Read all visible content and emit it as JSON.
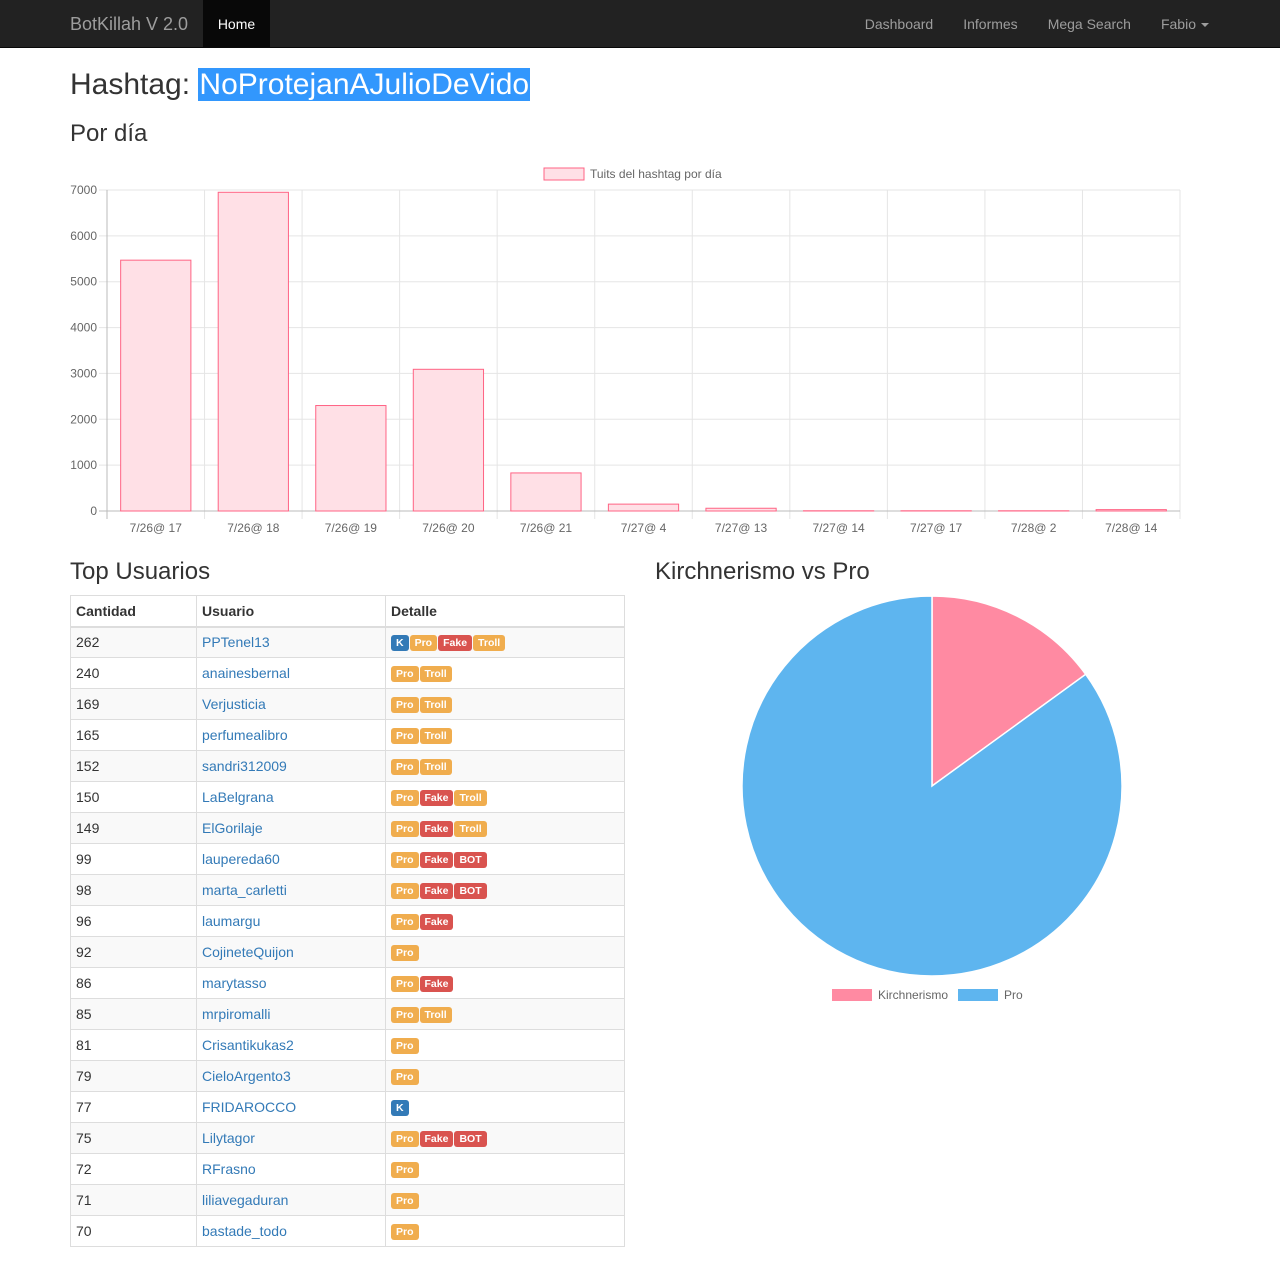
{
  "navbar": {
    "brand": "BotKillah V 2.0",
    "home": "Home",
    "links": [
      "Dashboard",
      "Informes",
      "Mega Search"
    ],
    "user": "Fabio"
  },
  "header": {
    "prefix": "Hashtag: ",
    "hashtag": "NoProtejanAJulioDeVido"
  },
  "sections": {
    "per_day": "Por día",
    "top_users": "Top Usuarios",
    "pie": "Kirchnerismo vs Pro"
  },
  "table": {
    "headers": [
      "Cantidad",
      "Usuario",
      "Detalle"
    ],
    "rows": [
      {
        "count": "262",
        "user": "PPTenel13",
        "tags": [
          "K",
          "Pro",
          "Fake",
          "Troll"
        ]
      },
      {
        "count": "240",
        "user": "anainesbernal",
        "tags": [
          "Pro",
          "Troll"
        ]
      },
      {
        "count": "169",
        "user": "Verjusticia",
        "tags": [
          "Pro",
          "Troll"
        ]
      },
      {
        "count": "165",
        "user": "perfumealibro",
        "tags": [
          "Pro",
          "Troll"
        ]
      },
      {
        "count": "152",
        "user": "sandri312009",
        "tags": [
          "Pro",
          "Troll"
        ]
      },
      {
        "count": "150",
        "user": "LaBelgrana",
        "tags": [
          "Pro",
          "Fake",
          "Troll"
        ]
      },
      {
        "count": "149",
        "user": "ElGorilaje",
        "tags": [
          "Pro",
          "Fake",
          "Troll"
        ]
      },
      {
        "count": "99",
        "user": "laupereda60",
        "tags": [
          "Pro",
          "Fake",
          "BOT"
        ]
      },
      {
        "count": "98",
        "user": "marta_carletti",
        "tags": [
          "Pro",
          "Fake",
          "BOT"
        ]
      },
      {
        "count": "96",
        "user": "laumargu",
        "tags": [
          "Pro",
          "Fake"
        ]
      },
      {
        "count": "92",
        "user": "CojineteQuijon",
        "tags": [
          "Pro"
        ]
      },
      {
        "count": "86",
        "user": "marytasso",
        "tags": [
          "Pro",
          "Fake"
        ]
      },
      {
        "count": "85",
        "user": "mrpiromalli",
        "tags": [
          "Pro",
          "Troll"
        ]
      },
      {
        "count": "81",
        "user": "Crisantikukas2",
        "tags": [
          "Pro"
        ]
      },
      {
        "count": "79",
        "user": "CieloArgento3",
        "tags": [
          "Pro"
        ]
      },
      {
        "count": "77",
        "user": "FRIDAROCCO",
        "tags": [
          "K"
        ]
      },
      {
        "count": "75",
        "user": "Lilytagor",
        "tags": [
          "Pro",
          "Fake",
          "BOT"
        ]
      },
      {
        "count": "72",
        "user": "RFrasno",
        "tags": [
          "Pro"
        ]
      },
      {
        "count": "71",
        "user": "liliavegaduran",
        "tags": [
          "Pro"
        ]
      },
      {
        "count": "70",
        "user": "bastade_todo",
        "tags": [
          "Pro"
        ]
      }
    ]
  },
  "colors": {
    "bar_fill": "#ffe0e6",
    "bar_stroke": "#ff6384",
    "pie_k": "#ff8aa2",
    "pie_pro": "#5eb5ef",
    "tag_k": "#337ab7",
    "tag_pro": "#f0ad4e",
    "tag_fake": "#d9534f",
    "tag_bot": "#d9534f"
  },
  "chart_data": [
    {
      "type": "bar",
      "legend": "Tuits del hashtag  por día",
      "categories": [
        "7/26@ 17",
        "7/26@ 18",
        "7/26@ 19",
        "7/26@ 20",
        "7/26@ 21",
        "7/27@ 4",
        "7/27@ 13",
        "7/27@ 14",
        "7/27@ 17",
        "7/28@ 2",
        "7/28@ 14"
      ],
      "values": [
        5470,
        6950,
        2300,
        3090,
        830,
        150,
        60,
        5,
        5,
        5,
        30
      ],
      "ylim": [
        0,
        7000
      ],
      "yticks": [
        0,
        1000,
        2000,
        3000,
        4000,
        5000,
        6000,
        7000
      ],
      "grid": true,
      "legend_position": "top"
    },
    {
      "type": "pie",
      "labels": [
        "Kirchnerismo",
        "Pro"
      ],
      "values": [
        15,
        85
      ],
      "legend_position": "bottom"
    }
  ]
}
